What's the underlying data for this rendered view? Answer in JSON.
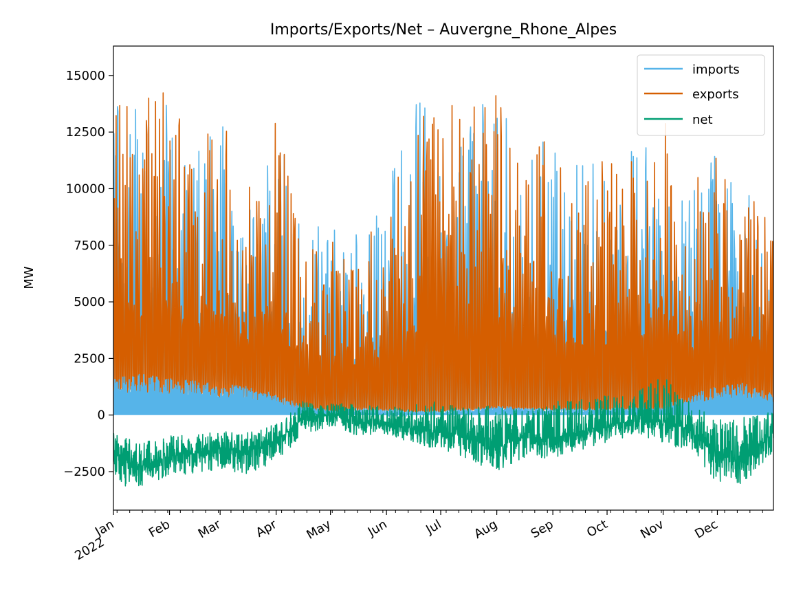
{
  "chart_data": {
    "type": "line",
    "title": "Imports/Exports/Net – Auvergne_Rhone_Alpes",
    "xlabel": "",
    "ylabel": "MW",
    "xlim": [
      "2022-01-01",
      "2023-01-01"
    ],
    "ylim": [
      -4200,
      16300
    ],
    "yticks": [
      -2500,
      0,
      2500,
      5000,
      7500,
      10000,
      12500,
      15000
    ],
    "ytick_labels": [
      "−2500",
      "0",
      "2500",
      "5000",
      "7500",
      "10000",
      "12500",
      "15000"
    ],
    "xticks": [
      {
        "date": "2022-01-01",
        "label": "Jan",
        "label2": "2022"
      },
      {
        "date": "2022-02-01",
        "label": "Feb"
      },
      {
        "date": "2022-03-01",
        "label": "Mar"
      },
      {
        "date": "2022-04-01",
        "label": "Apr"
      },
      {
        "date": "2022-05-01",
        "label": "May"
      },
      {
        "date": "2022-06-01",
        "label": "Jun"
      },
      {
        "date": "2022-07-01",
        "label": "Jul"
      },
      {
        "date": "2022-08-01",
        "label": "Aug"
      },
      {
        "date": "2022-09-01",
        "label": "Sep"
      },
      {
        "date": "2022-10-01",
        "label": "Oct"
      },
      {
        "date": "2022-11-01",
        "label": "Nov"
      },
      {
        "date": "2022-12-01",
        "label": "Dec"
      }
    ],
    "grid": false,
    "legend_position": "top-right",
    "series": [
      {
        "name": "imports",
        "color": "#56b4e9",
        "x": [
          "2022-01-01",
          "2022-01-15",
          "2022-02-01",
          "2022-02-15",
          "2022-03-01",
          "2022-03-15",
          "2022-04-01",
          "2022-04-15",
          "2022-05-01",
          "2022-05-15",
          "2022-06-01",
          "2022-06-15",
          "2022-07-01",
          "2022-07-15",
          "2022-08-01",
          "2022-08-15",
          "2022-09-01",
          "2022-09-15",
          "2022-10-01",
          "2022-10-15",
          "2022-11-01",
          "2022-11-15",
          "2022-12-01",
          "2022-12-15",
          "2023-01-01"
        ],
        "baseline": [
          1500,
          1700,
          1500,
          1400,
          1300,
          1200,
          900,
          400,
          200,
          150,
          100,
          100,
          150,
          200,
          400,
          300,
          200,
          200,
          300,
          300,
          400,
          800,
          1200,
          1300,
          900
        ],
        "peaks": [
          14000,
          13500,
          13800,
          11500,
          13500,
          9800,
          13000,
          8500,
          8200,
          8300,
          10500,
          13500,
          15000,
          13800,
          13800,
          12000,
          12500,
          11000,
          12000,
          12500,
          12000,
          10000,
          12000,
          11000,
          8000
        ]
      },
      {
        "name": "exports",
        "color": "#d55e00",
        "x": [
          "2022-01-01",
          "2022-01-15",
          "2022-02-01",
          "2022-02-15",
          "2022-03-01",
          "2022-03-15",
          "2022-04-01",
          "2022-04-15",
          "2022-05-01",
          "2022-05-15",
          "2022-06-01",
          "2022-06-15",
          "2022-07-01",
          "2022-07-15",
          "2022-08-01",
          "2022-08-15",
          "2022-09-01",
          "2022-09-15",
          "2022-10-01",
          "2022-10-15",
          "2022-11-01",
          "2022-11-15",
          "2022-12-01",
          "2022-12-15",
          "2023-01-01"
        ],
        "baseline": [
          1200,
          1000,
          800,
          1000,
          900,
          800,
          500,
          200,
          200,
          300,
          300,
          200,
          200,
          300,
          300,
          300,
          300,
          300,
          300,
          300,
          300,
          300,
          500,
          600,
          400
        ],
        "peaks": [
          14300,
          13700,
          14800,
          11000,
          14000,
          9500,
          14000,
          8200,
          7600,
          8000,
          9500,
          12500,
          15300,
          13500,
          14200,
          12000,
          12300,
          10800,
          11500,
          12000,
          13700,
          10000,
          12300,
          11000,
          8300
        ]
      },
      {
        "name": "net",
        "color": "#009e73",
        "x": [
          "2022-01-01",
          "2022-01-15",
          "2022-02-01",
          "2022-02-15",
          "2022-03-01",
          "2022-03-15",
          "2022-04-01",
          "2022-04-15",
          "2022-05-01",
          "2022-05-15",
          "2022-06-01",
          "2022-06-15",
          "2022-07-01",
          "2022-07-15",
          "2022-08-01",
          "2022-08-15",
          "2022-09-01",
          "2022-09-15",
          "2022-10-01",
          "2022-10-15",
          "2022-11-01",
          "2022-11-15",
          "2022-12-01",
          "2022-12-15",
          "2023-01-01"
        ],
        "center": [
          -1700,
          -2300,
          -1800,
          -1700,
          -1500,
          -1600,
          -1200,
          -200,
          100,
          -300,
          -400,
          -600,
          -700,
          -1000,
          -1400,
          -1000,
          -1000,
          -800,
          -400,
          -300,
          -300,
          -600,
          -1800,
          -2000,
          -800
        ],
        "low": [
          -3100,
          -3200,
          -2700,
          -2600,
          -2400,
          -2600,
          -2100,
          -900,
          -500,
          -900,
          -900,
          -1200,
          -1600,
          -1900,
          -2600,
          -2000,
          -1900,
          -1600,
          -1200,
          -900,
          -1200,
          -1600,
          -3000,
          -3100,
          -1600
        ],
        "high": [
          -800,
          -1200,
          -900,
          -900,
          -700,
          -800,
          -400,
          600,
          500,
          500,
          400,
          500,
          600,
          300,
          500,
          400,
          600,
          700,
          900,
          1000,
          1700,
          700,
          -200,
          0,
          200
        ]
      }
    ]
  }
}
